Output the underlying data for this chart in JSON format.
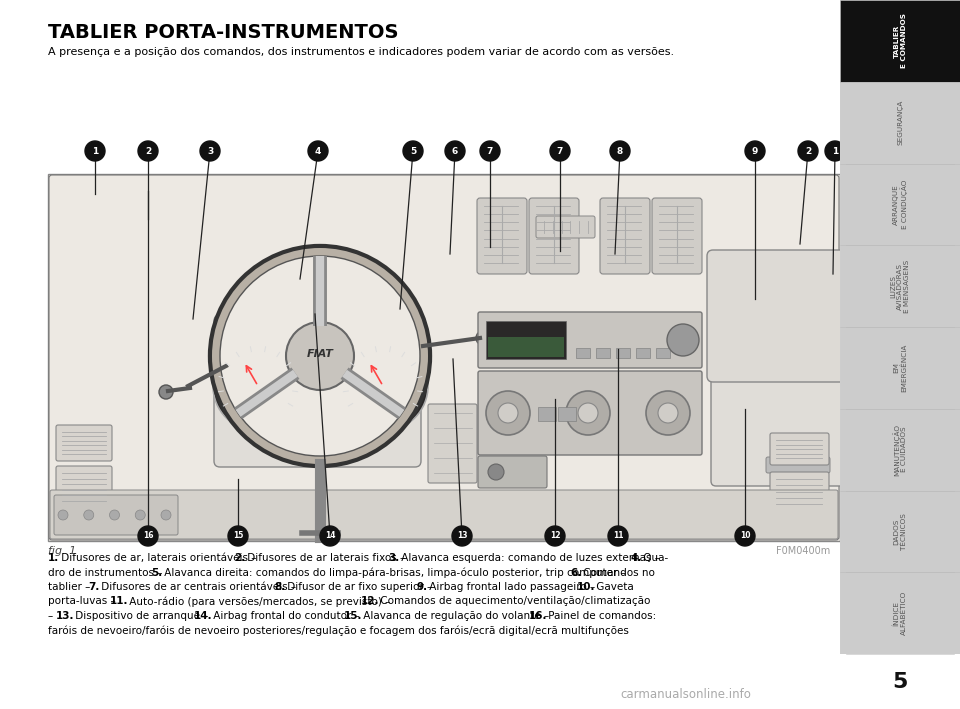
{
  "title": "TABLIER PORTA-INSTRUMENTOS",
  "subtitle": "A presença e a posição dos comandos, dos instrumentos e indicadores podem variar de acordo com as versões.",
  "fig_label": "fig. 1",
  "watermark": "F0M0400m",
  "page_number": "5",
  "sidebar_tabs": [
    {
      "label": "TABLIER\nE COMANDOS",
      "active": true
    },
    {
      "label": "SEGURANÇA",
      "active": false
    },
    {
      "label": "ARRANQUE\nE CONDUÇÃO",
      "active": false
    },
    {
      "label": "LUZES\nAVISADORAS\nE MENSAGENS",
      "active": false
    },
    {
      "label": "EM\nEMERGÊNCIA",
      "active": false
    },
    {
      "label": "MANUTENÇÃO\nE CUIDADOS",
      "active": false
    },
    {
      "label": "DADOS\nTÉCNICOS",
      "active": false
    },
    {
      "label": "ÍNDICE\nALFABÉTICO",
      "active": false
    }
  ],
  "desc_lines": [
    "**1.** Difusores de ar, laterais orientáveis – **2.** Difusores de ar laterais fixos – **3.** Alavanca esquerda: comando de luzes externas – **4.** Qua-",
    "dro de instrumentos – **5.** Alavanca direita: comandos do limpa-pára-brisas, limpa-óculo posterior, trip computer – **6.** Comandos no",
    "tablier – **7.** Difusores de ar centrais orientáveis – **8.** Difusor de ar fixo superior – **9.** Airbag frontal lado passageiro – **10.** Gaveta",
    "porta-luvas – **11.** Auto-rádio (para versões/mercados, se previsto) – **12.** Comandos de aquecimento/ventilação/climatização",
    "– **13.** Dispositivo de arranque – **14.** Airbag frontal do condutor – **15.** Alavanca de regulação do volante – **16.** Painel de comandos:",
    "faróis de nevoeiro/faróis de nevoeiro posteriores/regulação e focagem dos faróis/ecrã digital/ecrã multifunções"
  ],
  "bg_color": "#ffffff",
  "sidebar_bg": "#cccccc",
  "sidebar_active_bg": "#111111",
  "sidebar_active_text": "#ffffff",
  "sidebar_inactive_text": "#555555",
  "title_color": "#000000",
  "text_color": "#000000",
  "dash_bg": "#f0ede8",
  "dash_edge": "#888888",
  "callout_bg": "#111111",
  "callout_text": "#ffffff",
  "top_callouts": [
    [
      "1",
      95,
      515,
      95,
      558
    ],
    [
      "2",
      148,
      490,
      148,
      558
    ],
    [
      "3",
      193,
      390,
      210,
      558
    ],
    [
      "4",
      300,
      430,
      318,
      558
    ],
    [
      "5",
      400,
      400,
      413,
      558
    ],
    [
      "6",
      450,
      455,
      455,
      558
    ],
    [
      "7",
      490,
      462,
      490,
      558
    ],
    [
      "7",
      560,
      458,
      560,
      558
    ],
    [
      "8",
      615,
      455,
      620,
      558
    ],
    [
      "9",
      755,
      410,
      755,
      558
    ],
    [
      "2",
      800,
      465,
      808,
      558
    ],
    [
      "1",
      833,
      435,
      835,
      558
    ]
  ],
  "bottom_callouts": [
    [
      "16",
      148,
      518,
      148,
      173
    ],
    [
      "15",
      238,
      230,
      238,
      173
    ],
    [
      "14",
      315,
      395,
      330,
      173
    ],
    [
      "13",
      453,
      350,
      462,
      173
    ],
    [
      "12",
      555,
      310,
      555,
      173
    ],
    [
      "11",
      618,
      360,
      618,
      173
    ],
    [
      "10",
      745,
      300,
      745,
      173
    ]
  ]
}
